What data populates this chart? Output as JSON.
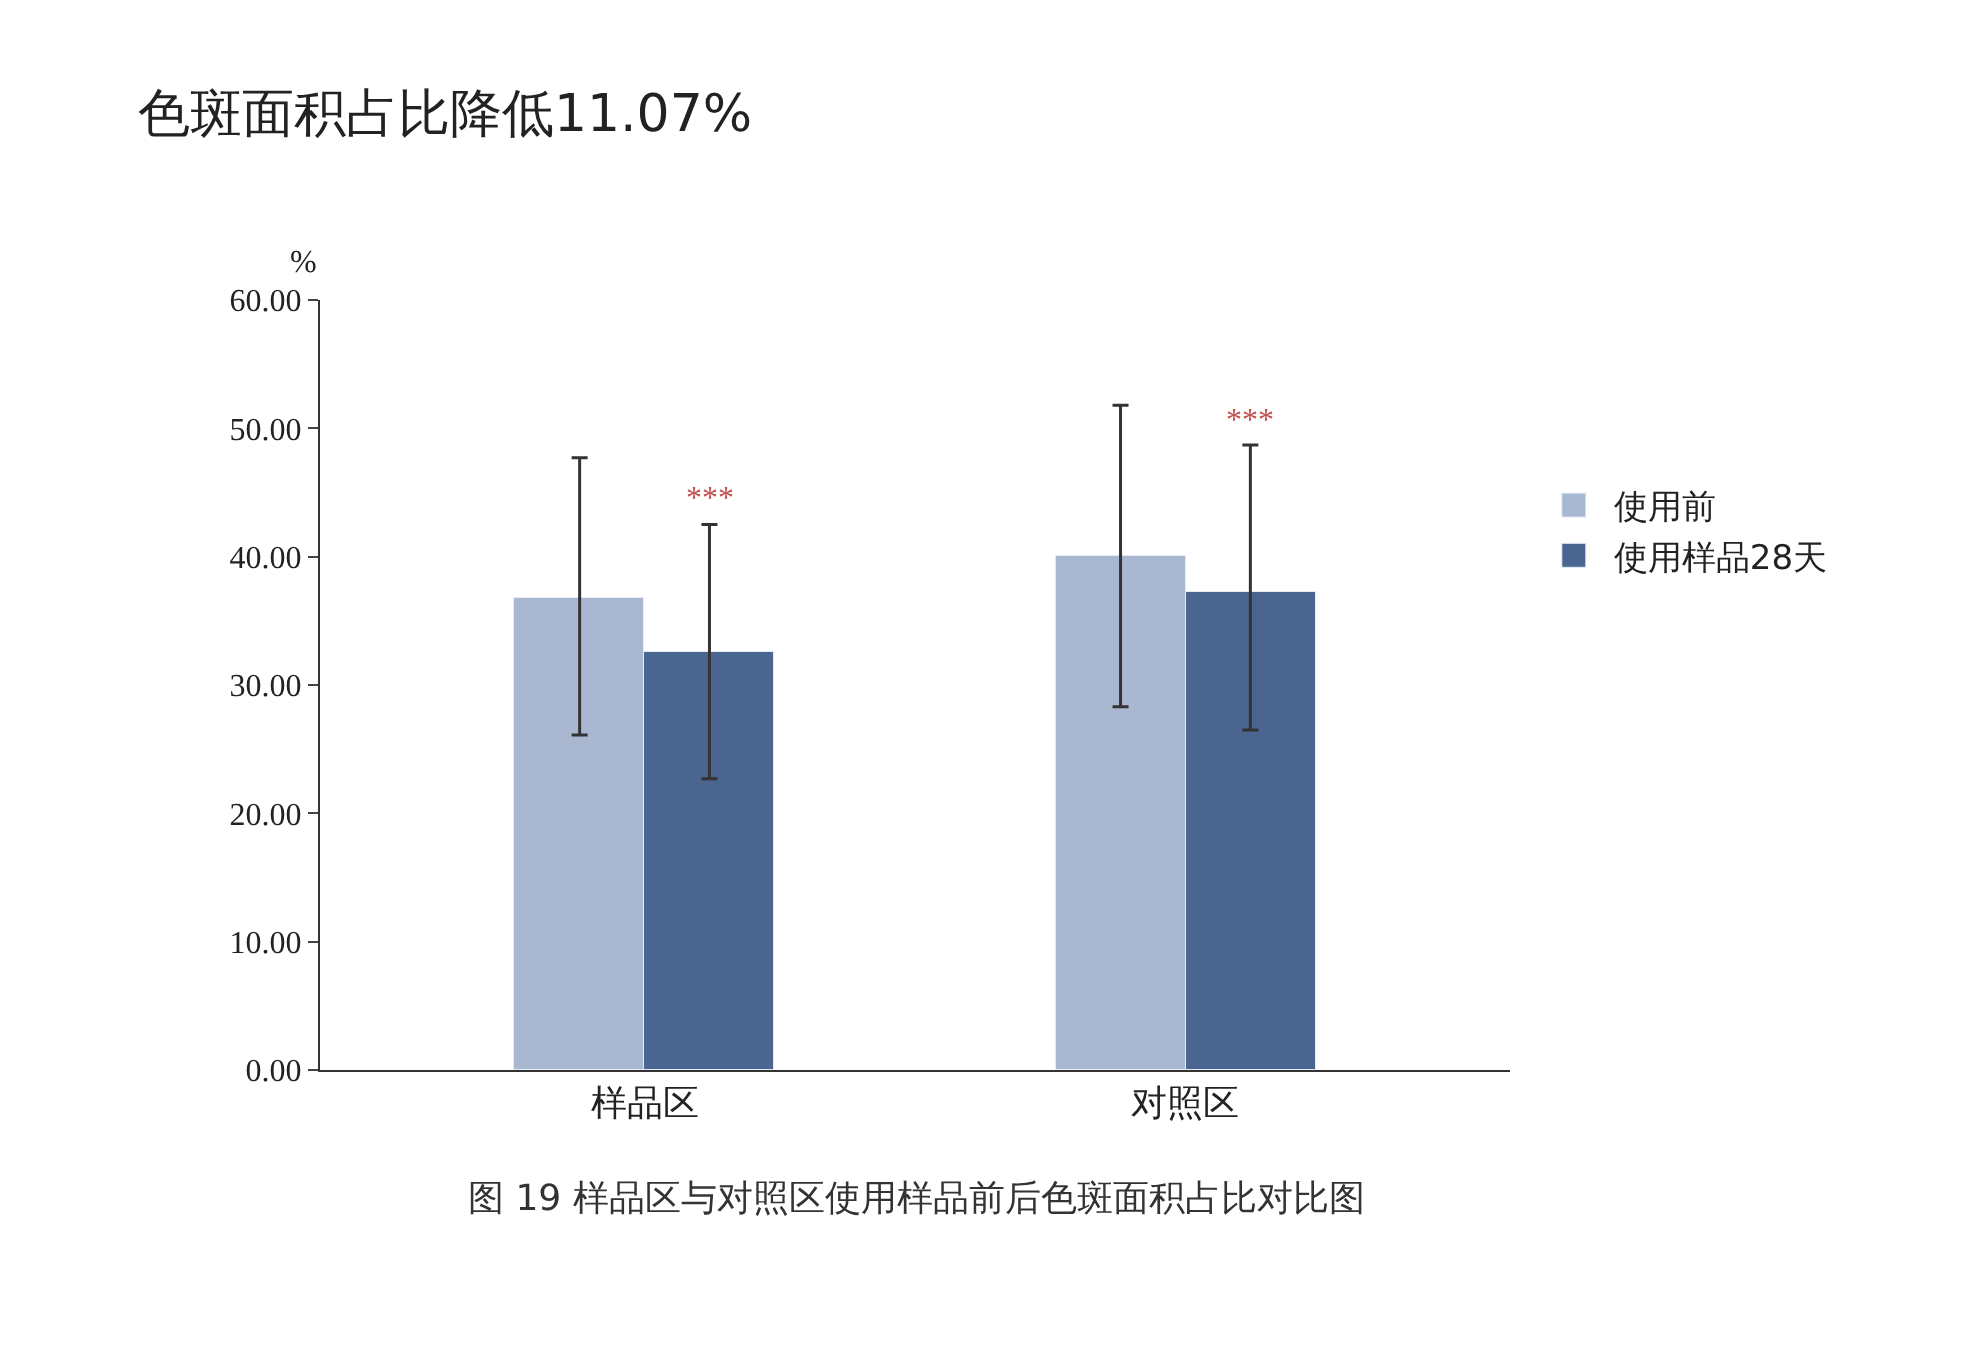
{
  "chart_data": {
    "type": "bar",
    "title": "色斑面积占比降低11.07%",
    "ylabel": "%",
    "categories": [
      "样品区",
      "对照区"
    ],
    "series": [
      {
        "name": "使用前",
        "color": "#a9b8d0",
        "values": [
          36.8,
          40.0
        ],
        "errors": [
          [
            26.1,
            47.7
          ],
          [
            28.3,
            51.8
          ]
        ]
      },
      {
        "name": "使用样品28天",
        "color": "#4a6590",
        "values": [
          32.5,
          37.3
        ],
        "errors": [
          [
            22.7,
            42.5
          ],
          [
            26.5,
            48.7
          ]
        ]
      }
    ],
    "ylim": [
      0,
      60
    ],
    "yticks": [
      {
        "value": 0,
        "label": "0.00"
      },
      {
        "value": 10,
        "label": "10.00"
      },
      {
        "value": 20,
        "label": "20.00"
      },
      {
        "value": 30,
        "label": "30.00"
      },
      {
        "value": 40,
        "label": "40.00"
      },
      {
        "value": 50,
        "label": "50.00"
      },
      {
        "value": 60,
        "label": "60.00"
      }
    ],
    "annotations": [
      "***",
      "***",
      "图 19 样品区与对照区使用样品前后色斑面积占比对比图"
    ],
    "legend": "right"
  }
}
